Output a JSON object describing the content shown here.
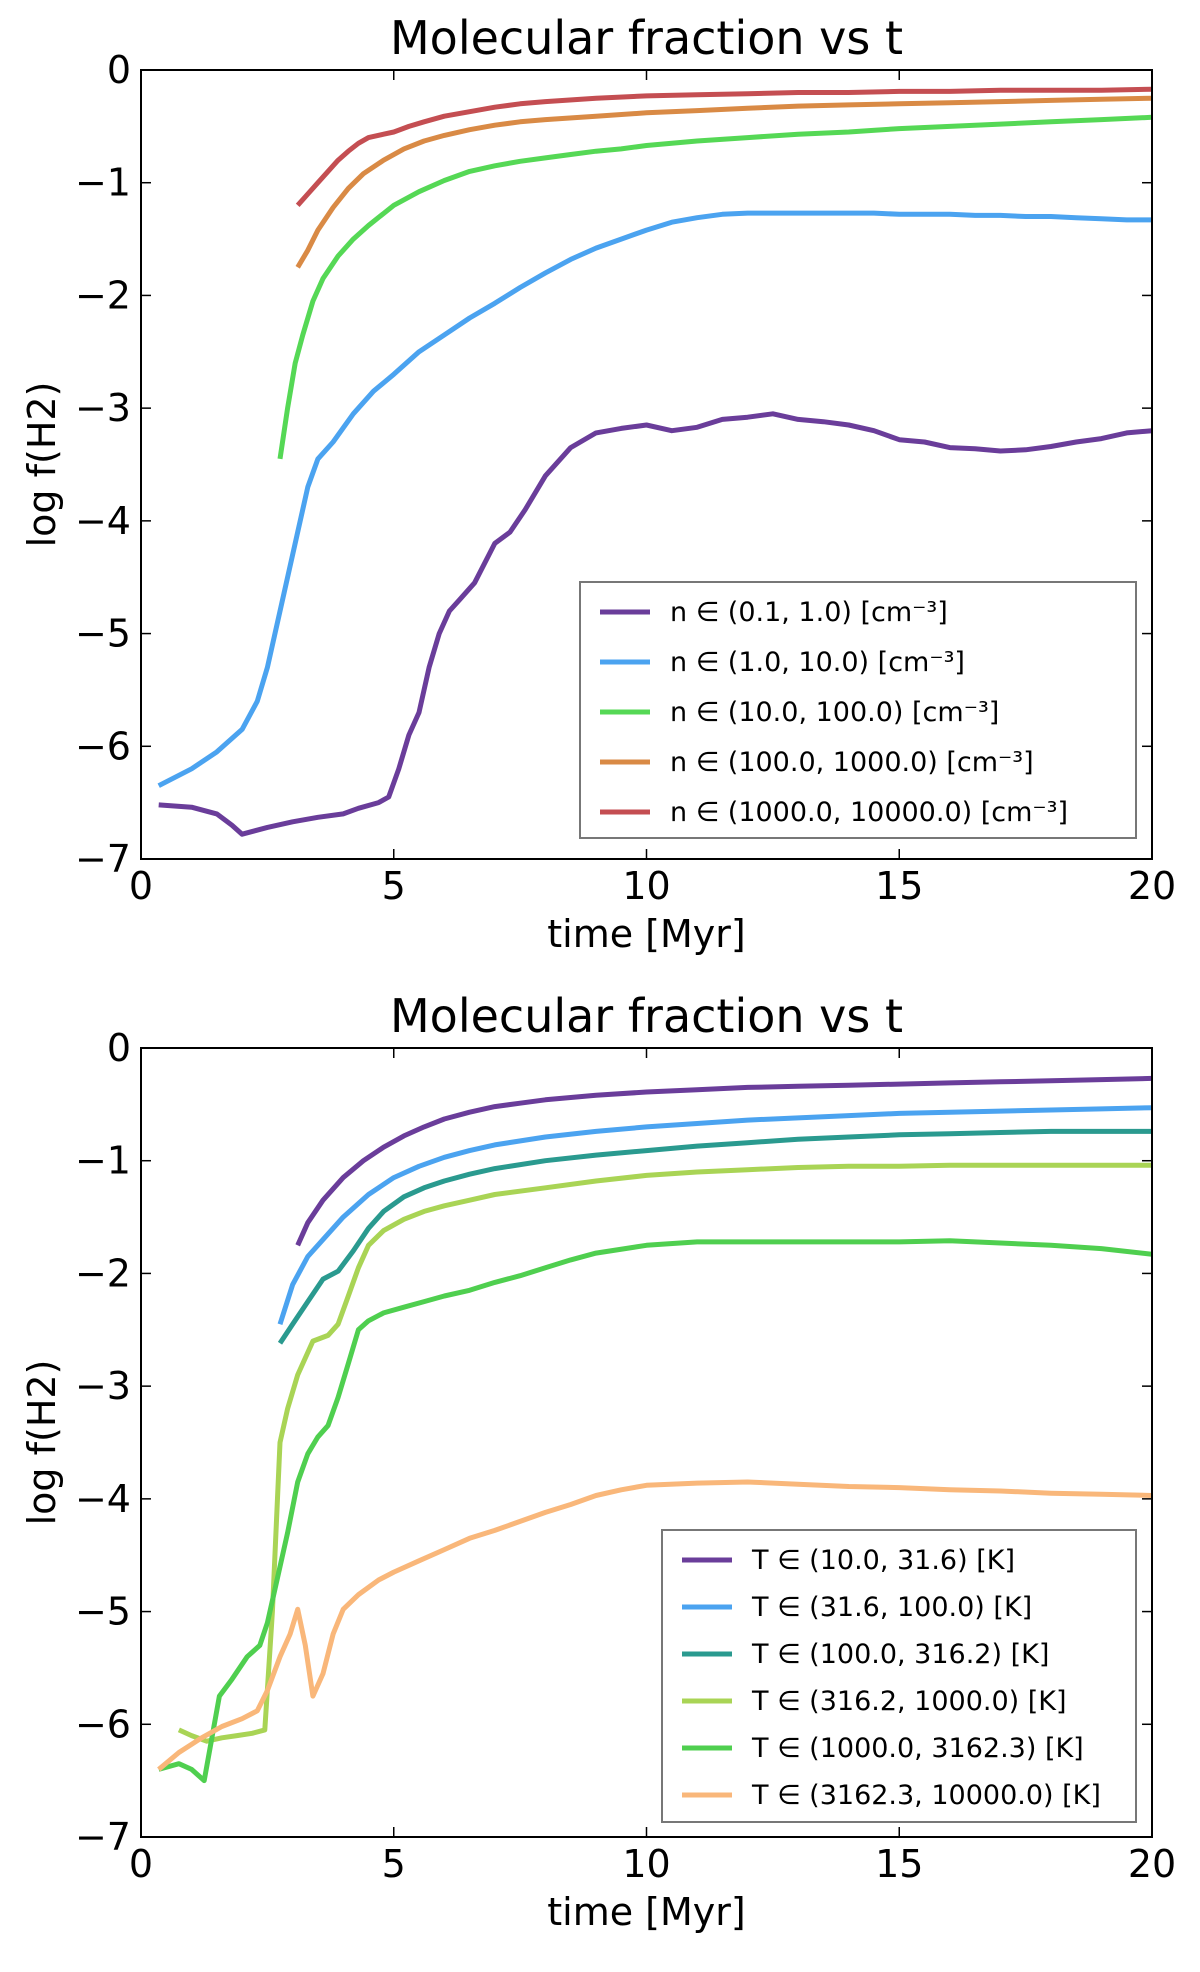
{
  "chart_data": [
    {
      "type": "line",
      "title": "Molecular fraction vs t",
      "xlabel": "time [Myr]",
      "ylabel": "log f(H2)",
      "xlim": [
        0,
        20
      ],
      "ylim": [
        -7,
        0
      ],
      "xticks": [
        "0",
        "5",
        "10",
        "15",
        "20"
      ],
      "yticks": [
        "0",
        "−1",
        "−2",
        "−3",
        "−4",
        "−5",
        "−6",
        "−7"
      ],
      "grid": false,
      "legend_position": "lower-right",
      "series": [
        {
          "name": "n ∈ (0.1, 1.0) [cm⁻³]",
          "color": "#6a3d9a",
          "x": [
            0.35,
            1.0,
            1.5,
            1.8,
            2.0,
            2.5,
            3.0,
            3.5,
            4.0,
            4.3,
            4.7,
            4.9,
            5.1,
            5.3,
            5.5,
            5.7,
            5.9,
            6.1,
            6.3,
            6.6,
            7.0,
            7.3,
            7.6,
            8.0,
            8.5,
            9.0,
            9.5,
            10.0,
            10.5,
            11.0,
            11.5,
            12.0,
            12.5,
            13.0,
            13.5,
            14.0,
            14.5,
            15.0,
            15.5,
            16.0,
            16.5,
            17.0,
            17.5,
            18.0,
            18.5,
            19.0,
            19.5,
            20.0
          ],
          "y": [
            -6.52,
            -6.54,
            -6.6,
            -6.7,
            -6.78,
            -6.72,
            -6.67,
            -6.63,
            -6.6,
            -6.55,
            -6.5,
            -6.45,
            -6.2,
            -5.9,
            -5.7,
            -5.3,
            -5.0,
            -4.8,
            -4.7,
            -4.55,
            -4.2,
            -4.1,
            -3.9,
            -3.6,
            -3.35,
            -3.22,
            -3.18,
            -3.15,
            -3.2,
            -3.17,
            -3.1,
            -3.08,
            -3.05,
            -3.1,
            -3.12,
            -3.15,
            -3.2,
            -3.28,
            -3.3,
            -3.35,
            -3.36,
            -3.38,
            -3.37,
            -3.34,
            -3.3,
            -3.27,
            -3.22,
            -3.2
          ]
        },
        {
          "name": "n ∈ (1.0, 10.0) [cm⁻³]",
          "color": "#4ba3f0",
          "x": [
            0.35,
            1.0,
            1.5,
            2.0,
            2.3,
            2.5,
            2.7,
            2.9,
            3.1,
            3.3,
            3.5,
            3.8,
            4.2,
            4.6,
            5.0,
            5.5,
            6.0,
            6.5,
            7.0,
            7.5,
            8.0,
            8.5,
            9.0,
            9.5,
            10.0,
            10.5,
            11.0,
            11.5,
            12.0,
            12.5,
            13.0,
            13.5,
            14.0,
            14.5,
            15.0,
            15.5,
            16.0,
            16.5,
            17.0,
            17.5,
            18.0,
            18.5,
            19.0,
            19.5,
            20.0
          ],
          "y": [
            -6.35,
            -6.2,
            -6.05,
            -5.85,
            -5.6,
            -5.3,
            -4.9,
            -4.5,
            -4.1,
            -3.7,
            -3.45,
            -3.3,
            -3.05,
            -2.85,
            -2.7,
            -2.5,
            -2.35,
            -2.2,
            -2.07,
            -1.93,
            -1.8,
            -1.68,
            -1.58,
            -1.5,
            -1.42,
            -1.35,
            -1.31,
            -1.28,
            -1.27,
            -1.27,
            -1.27,
            -1.27,
            -1.27,
            -1.27,
            -1.28,
            -1.28,
            -1.28,
            -1.29,
            -1.29,
            -1.3,
            -1.3,
            -1.31,
            -1.32,
            -1.33,
            -1.33
          ]
        },
        {
          "name": "n ∈ (10.0, 100.0) [cm⁻³]",
          "color": "#55d855",
          "x": [
            2.75,
            2.9,
            3.05,
            3.2,
            3.4,
            3.6,
            3.9,
            4.2,
            4.5,
            5.0,
            5.5,
            6.0,
            6.5,
            7.0,
            7.5,
            8.0,
            8.5,
            9.0,
            9.5,
            10.0,
            11.0,
            12.0,
            13.0,
            14.0,
            15.0,
            16.0,
            17.0,
            18.0,
            19.0,
            20.0
          ],
          "y": [
            -3.45,
            -3.0,
            -2.6,
            -2.35,
            -2.05,
            -1.85,
            -1.65,
            -1.5,
            -1.38,
            -1.2,
            -1.08,
            -0.98,
            -0.9,
            -0.85,
            -0.81,
            -0.78,
            -0.75,
            -0.72,
            -0.7,
            -0.67,
            -0.63,
            -0.6,
            -0.57,
            -0.55,
            -0.52,
            -0.5,
            -0.48,
            -0.46,
            -0.44,
            -0.42
          ]
        },
        {
          "name": "n ∈ (100.0, 1000.0) [cm⁻³]",
          "color": "#d98a45",
          "x": [
            3.1,
            3.3,
            3.5,
            3.8,
            4.1,
            4.4,
            4.8,
            5.2,
            5.6,
            6.0,
            6.5,
            7.0,
            7.5,
            8.0,
            9.0,
            10.0,
            11.0,
            12.0,
            13.0,
            14.0,
            15.0,
            16.0,
            17.0,
            18.0,
            19.0,
            20.0
          ],
          "y": [
            -1.75,
            -1.6,
            -1.42,
            -1.22,
            -1.05,
            -0.92,
            -0.8,
            -0.7,
            -0.63,
            -0.58,
            -0.53,
            -0.49,
            -0.46,
            -0.44,
            -0.41,
            -0.38,
            -0.36,
            -0.34,
            -0.32,
            -0.31,
            -0.3,
            -0.29,
            -0.28,
            -0.27,
            -0.26,
            -0.25
          ]
        },
        {
          "name": "n ∈ (1000.0, 10000.0) [cm⁻³]",
          "color": "#c44e52",
          "x": [
            3.1,
            3.3,
            3.5,
            3.7,
            3.9,
            4.1,
            4.3,
            4.5,
            4.8,
            5.0,
            5.3,
            5.6,
            6.0,
            6.5,
            7.0,
            7.5,
            8.0,
            9.0,
            10.0,
            11.0,
            12.0,
            13.0,
            14.0,
            15.0,
            16.0,
            17.0,
            18.0,
            19.0,
            20.0
          ],
          "y": [
            -1.2,
            -1.1,
            -1.0,
            -0.9,
            -0.8,
            -0.72,
            -0.65,
            -0.6,
            -0.57,
            -0.55,
            -0.5,
            -0.46,
            -0.41,
            -0.37,
            -0.33,
            -0.3,
            -0.28,
            -0.25,
            -0.23,
            -0.22,
            -0.21,
            -0.2,
            -0.2,
            -0.19,
            -0.19,
            -0.18,
            -0.18,
            -0.18,
            -0.17
          ]
        }
      ]
    },
    {
      "type": "line",
      "title": "Molecular fraction vs t",
      "xlabel": "time [Myr]",
      "ylabel": "log f(H2)",
      "xlim": [
        0,
        20
      ],
      "ylim": [
        -7,
        0
      ],
      "xticks": [
        "0",
        "5",
        "10",
        "15",
        "20"
      ],
      "yticks": [
        "0",
        "−1",
        "−2",
        "−3",
        "−4",
        "−5",
        "−6",
        "−7"
      ],
      "grid": false,
      "legend_position": "lower-right",
      "series": [
        {
          "name": "T ∈ (10.0, 31.6) [K]",
          "color": "#6a3d9a",
          "x": [
            3.1,
            3.3,
            3.6,
            4.0,
            4.4,
            4.8,
            5.2,
            5.6,
            6.0,
            6.5,
            7.0,
            7.5,
            8.0,
            9.0,
            10.0,
            11.0,
            12.0,
            13.0,
            14.0,
            15.0,
            16.0,
            17.0,
            18.0,
            19.0,
            20.0
          ],
          "y": [
            -1.75,
            -1.55,
            -1.35,
            -1.15,
            -1.0,
            -0.88,
            -0.78,
            -0.7,
            -0.63,
            -0.57,
            -0.52,
            -0.49,
            -0.46,
            -0.42,
            -0.39,
            -0.37,
            -0.35,
            -0.34,
            -0.33,
            -0.32,
            -0.31,
            -0.3,
            -0.29,
            -0.28,
            -0.27
          ]
        },
        {
          "name": "T ∈ (31.6, 100.0) [K]",
          "color": "#4ba3f0",
          "x": [
            2.75,
            3.0,
            3.3,
            3.6,
            4.0,
            4.5,
            5.0,
            5.5,
            6.0,
            6.5,
            7.0,
            8.0,
            9.0,
            10.0,
            11.0,
            12.0,
            13.0,
            14.0,
            15.0,
            16.0,
            17.0,
            18.0,
            19.0,
            20.0
          ],
          "y": [
            -2.45,
            -2.1,
            -1.85,
            -1.7,
            -1.5,
            -1.3,
            -1.15,
            -1.05,
            -0.97,
            -0.91,
            -0.86,
            -0.79,
            -0.74,
            -0.7,
            -0.67,
            -0.64,
            -0.62,
            -0.6,
            -0.58,
            -0.57,
            -0.56,
            -0.55,
            -0.54,
            -0.53
          ]
        },
        {
          "name": "T ∈ (100.0, 316.2) [K]",
          "color": "#2a9a8f",
          "x": [
            2.75,
            3.0,
            3.3,
            3.6,
            3.9,
            4.2,
            4.5,
            4.8,
            5.2,
            5.6,
            6.0,
            6.5,
            7.0,
            8.0,
            9.0,
            10.0,
            11.0,
            12.0,
            13.0,
            14.0,
            15.0,
            16.0,
            17.0,
            18.0,
            19.0,
            20.0
          ],
          "y": [
            -2.62,
            -2.45,
            -2.25,
            -2.05,
            -1.98,
            -1.8,
            -1.6,
            -1.45,
            -1.32,
            -1.24,
            -1.18,
            -1.12,
            -1.07,
            -1.0,
            -0.95,
            -0.91,
            -0.87,
            -0.84,
            -0.81,
            -0.79,
            -0.77,
            -0.76,
            -0.75,
            -0.74,
            -0.74,
            -0.74
          ]
        },
        {
          "name": "T ∈ (316.2, 1000.0) [K]",
          "color": "#a9d455",
          "x": [
            0.75,
            1.0,
            1.3,
            1.6,
            1.9,
            2.2,
            2.45,
            2.6,
            2.75,
            2.9,
            3.1,
            3.4,
            3.7,
            3.9,
            4.1,
            4.3,
            4.5,
            4.8,
            5.2,
            5.6,
            6.0,
            6.5,
            7.0,
            8.0,
            9.0,
            10.0,
            11.0,
            12.0,
            13.0,
            14.0,
            15.0,
            16.0,
            17.0,
            18.0,
            19.0,
            20.0
          ],
          "y": [
            -6.05,
            -6.1,
            -6.15,
            -6.12,
            -6.1,
            -6.08,
            -6.05,
            -5.0,
            -3.5,
            -3.2,
            -2.9,
            -2.6,
            -2.55,
            -2.45,
            -2.2,
            -1.95,
            -1.75,
            -1.62,
            -1.52,
            -1.45,
            -1.4,
            -1.35,
            -1.3,
            -1.24,
            -1.18,
            -1.13,
            -1.1,
            -1.08,
            -1.06,
            -1.05,
            -1.05,
            -1.04,
            -1.04,
            -1.04,
            -1.04,
            -1.04
          ]
        },
        {
          "name": "T ∈ (1000.0, 3162.3) [K]",
          "color": "#4fcf4f",
          "x": [
            0.35,
            0.75,
            1.0,
            1.25,
            1.55,
            1.8,
            2.1,
            2.35,
            2.5,
            2.7,
            2.9,
            3.1,
            3.3,
            3.5,
            3.7,
            3.9,
            4.1,
            4.3,
            4.5,
            4.8,
            5.2,
            5.6,
            6.0,
            6.5,
            7.0,
            7.5,
            8.0,
            8.5,
            9.0,
            10.0,
            11.0,
            12.0,
            13.0,
            14.0,
            15.0,
            16.0,
            17.0,
            18.0,
            19.0,
            20.0
          ],
          "y": [
            -6.4,
            -6.35,
            -6.4,
            -6.5,
            -5.75,
            -5.6,
            -5.4,
            -5.3,
            -5.1,
            -4.7,
            -4.3,
            -3.85,
            -3.6,
            -3.45,
            -3.35,
            -3.1,
            -2.8,
            -2.5,
            -2.42,
            -2.35,
            -2.3,
            -2.25,
            -2.2,
            -2.15,
            -2.08,
            -2.02,
            -1.95,
            -1.88,
            -1.82,
            -1.75,
            -1.72,
            -1.72,
            -1.72,
            -1.72,
            -1.72,
            -1.71,
            -1.73,
            -1.75,
            -1.78,
            -1.83
          ]
        },
        {
          "name": "T ∈ (3162.3, 10000.0) [K]",
          "color": "#f9b77a",
          "x": [
            0.35,
            0.75,
            1.2,
            1.6,
            2.0,
            2.3,
            2.5,
            2.75,
            2.95,
            3.1,
            3.25,
            3.4,
            3.6,
            3.8,
            4.0,
            4.3,
            4.7,
            5.0,
            5.5,
            6.0,
            6.5,
            7.0,
            7.5,
            8.0,
            8.5,
            9.0,
            9.5,
            10.0,
            11.0,
            12.0,
            13.0,
            14.0,
            15.0,
            16.0,
            17.0,
            18.0,
            19.0,
            20.0
          ],
          "y": [
            -6.4,
            -6.25,
            -6.12,
            -6.02,
            -5.95,
            -5.88,
            -5.7,
            -5.4,
            -5.2,
            -4.98,
            -5.3,
            -5.75,
            -5.55,
            -5.2,
            -4.98,
            -4.85,
            -4.72,
            -4.65,
            -4.55,
            -4.45,
            -4.35,
            -4.28,
            -4.2,
            -4.12,
            -4.05,
            -3.97,
            -3.92,
            -3.88,
            -3.86,
            -3.85,
            -3.87,
            -3.89,
            -3.9,
            -3.92,
            -3.93,
            -3.95,
            -3.96,
            -3.97
          ]
        }
      ]
    }
  ]
}
